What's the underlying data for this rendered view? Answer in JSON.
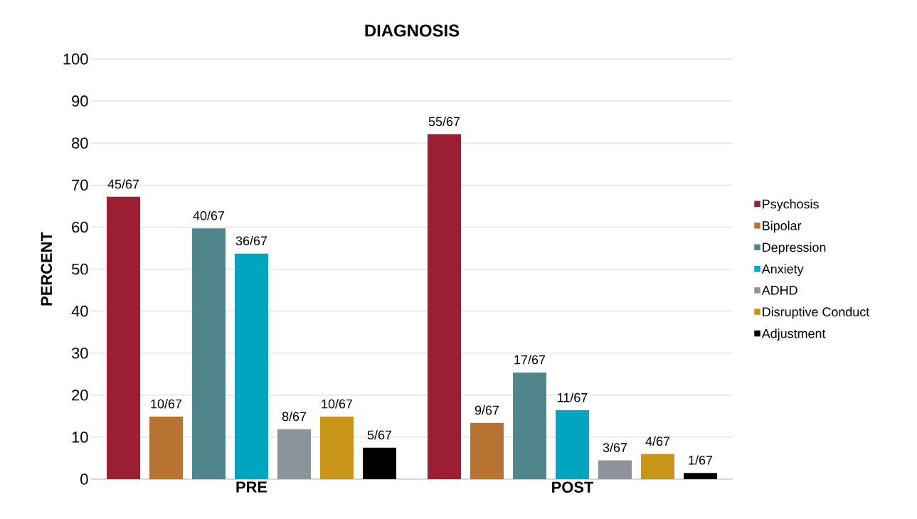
{
  "chart_data": {
    "type": "bar",
    "title": "DIAGNOSIS",
    "ylabel": "PERCENT",
    "categories": [
      "PRE",
      "POST"
    ],
    "series": [
      {
        "name": "Psychosis",
        "color": "#9b1f32",
        "values": [
          67.2,
          82.1
        ],
        "value_labels": [
          "45/67",
          "55/67"
        ]
      },
      {
        "name": "Bipolar",
        "color": "#b87333",
        "values": [
          14.9,
          13.4
        ],
        "value_labels": [
          "10/67",
          "9/67"
        ]
      },
      {
        "name": "Depression",
        "color": "#4f878d",
        "values": [
          59.7,
          25.4
        ],
        "value_labels": [
          "40/67",
          "17/67"
        ]
      },
      {
        "name": "Anxiety",
        "color": "#00a5c0",
        "values": [
          53.7,
          16.4
        ],
        "value_labels": [
          "36/67",
          "11/67"
        ]
      },
      {
        "name": "ADHD",
        "color": "#8c939a",
        "values": [
          11.9,
          4.5
        ],
        "value_labels": [
          "8/67",
          "3/67"
        ]
      },
      {
        "name": "Disruptive Conduct",
        "color": "#c99516",
        "values": [
          14.9,
          6.0
        ],
        "value_labels": [
          "10/67",
          "4/67"
        ]
      },
      {
        "name": "Adjustment",
        "color": "#000000",
        "values": [
          7.5,
          1.5
        ],
        "value_labels": [
          "5/67",
          "1/67"
        ]
      }
    ],
    "ylim": [
      0,
      100
    ],
    "yticks": [
      0,
      10,
      20,
      30,
      40,
      50,
      60,
      70,
      80,
      90,
      100
    ],
    "grid": "y",
    "legend": "right"
  }
}
